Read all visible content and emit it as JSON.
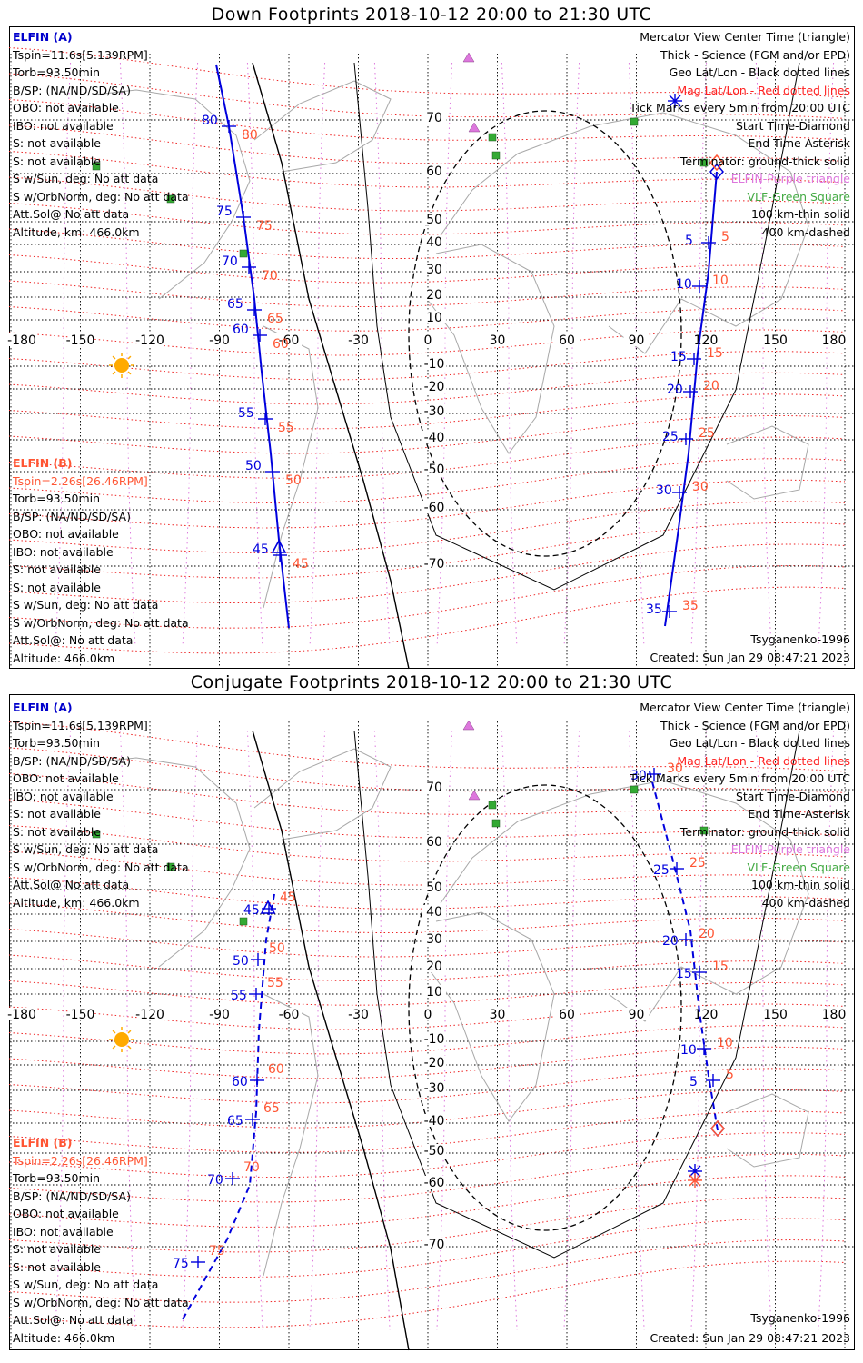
{
  "panels": [
    {
      "title": "Down Footprints 2018-10-12 20:00 to 21:30 UTC",
      "info_a": [
        "ELFIN (A)",
        "Tspin=11.6s[5.139RPM]",
        "Torb=93.50min",
        "B/SP: (NA/ND/SD/SA)",
        "OBO: not available",
        "IBO: not available",
        "S: not available",
        "S: not available",
        "S w/Sun, deg: No att data",
        "S w/OrbNorm, deg: No att data",
        "Att.Sol@ No att data",
        "Altitude, km: 466.0km"
      ],
      "info_b": [
        "ELFIN (B)",
        "Tspin=2.26s[26.46RPM]",
        "Torb=93.50min",
        "B/SP: (NA/ND/SD/SA)",
        "OBO: not available",
        "IBO: not available",
        "S: not available",
        "S: not available",
        "S w/Sun, deg: No att data",
        "S w/OrbNorm, deg: No att data",
        "Att.Sol@: No att data",
        "Altitude: 466.0km"
      ],
      "legend": [
        "Mercator View Center Time (triangle)",
        "Thick - Science (FGM and/or EPD)",
        "Geo Lat/Lon - Black dotted lines",
        "Mag Lat/Lon - Red dotted lines",
        "Tick Marks every 5min from 20:00 UTC",
        "Start Time-Diamond",
        "End Time-Asterisk",
        "Terminator: ground-thick solid",
        "ELFIN-Purple triangle",
        "VLF-Green Square",
        "100 km-thin solid",
        "400 km-dashed"
      ],
      "model": "Tsyganenko-1996",
      "created": "Created: Sun Jan 29 08:47:21 2023"
    },
    {
      "title": "Conjugate Footprints 2018-10-12 20:00 to 21:30 UTC",
      "info_a": [
        "ELFIN (A)",
        "Tspin=11.6s[5.139RPM]",
        "Torb=93.50min",
        "B/SP: (NA/ND/SD/SA)",
        "OBO: not available",
        "IBO: not available",
        "S: not available",
        "S: not available",
        "S w/Sun, deg: No att data",
        "S w/OrbNorm, deg: No att data",
        "Att.Sol@ No att data",
        "Altitude, km: 466.0km"
      ],
      "info_b": [
        "ELFIN (B)",
        "Tspin=2.26s[26.46RPM]",
        "Torb=93.50min",
        "B/SP: (NA/ND/SD/SA)",
        "OBO: not available",
        "IBO: not available",
        "S: not available",
        "S: not available",
        "S w/Sun, deg: No att data",
        "S w/OrbNorm, deg: No att data",
        "Att.Sol@: No att data",
        "Altitude: 466.0km"
      ],
      "legend": [
        "Mercator View Center Time (triangle)",
        "Thick - Science (FGM and/or EPD)",
        "Geo Lat/Lon - Black dotted lines",
        "Mag Lat/Lon - Red dotted lines",
        "Tick Marks every 5min from 20:00 UTC",
        "Start Time-Diamond",
        "End Time-Asterisk",
        "Terminator: ground-thick solid",
        "ELFIN-Purple triangle",
        "VLF-Green Square",
        "100 km-thin solid",
        "400 km-dashed"
      ],
      "model": "Tsyganenko-1996",
      "created": "Created: Sun Jan 29 08:47:21 2023"
    }
  ],
  "lon_labels": [
    "-180",
    "-150",
    "-120",
    "-90",
    "-60",
    "-30",
    "0",
    "30",
    "60",
    "90",
    "120",
    "150",
    "180"
  ],
  "lat_labels_pos": [
    "70",
    "60",
    "50",
    "40",
    "30",
    "20",
    "10"
  ],
  "lat_labels_neg": [
    "-10",
    "-20",
    "-30",
    "-40",
    "-50",
    "-60",
    "-70"
  ],
  "track_down_a_west": [
    "80",
    "75",
    "70",
    "65",
    "60",
    "55",
    "50",
    "45"
  ],
  "track_down_b_west": [
    "80",
    "75",
    "70",
    "65",
    "60",
    "55",
    "50",
    "45"
  ],
  "track_down_a_east": [
    "5",
    "10",
    "15",
    "20",
    "25",
    "30",
    "35"
  ],
  "track_down_b_east": [
    "5",
    "10",
    "15",
    "20",
    "25",
    "30",
    "35"
  ],
  "track_conj_a_west": [
    "45",
    "50",
    "55",
    "60",
    "65",
    "70",
    "75"
  ],
  "track_conj_b_west": [
    "45",
    "50",
    "55",
    "60",
    "65",
    "70",
    "75"
  ],
  "track_conj_a_east": [
    "30",
    "25",
    "20",
    "15",
    "10",
    "5"
  ],
  "track_conj_b_east": [
    "30",
    "25",
    "20",
    "15",
    "10",
    "5"
  ],
  "colors": {
    "elfin_a": "#0000dd",
    "elfin_b": "#ff5533",
    "mag_grid": "#ee2222",
    "geo_grid": "#000000",
    "elfin_marker": "#dd77dd",
    "vlf": "#33aa33",
    "sun": "#ffaa00"
  }
}
